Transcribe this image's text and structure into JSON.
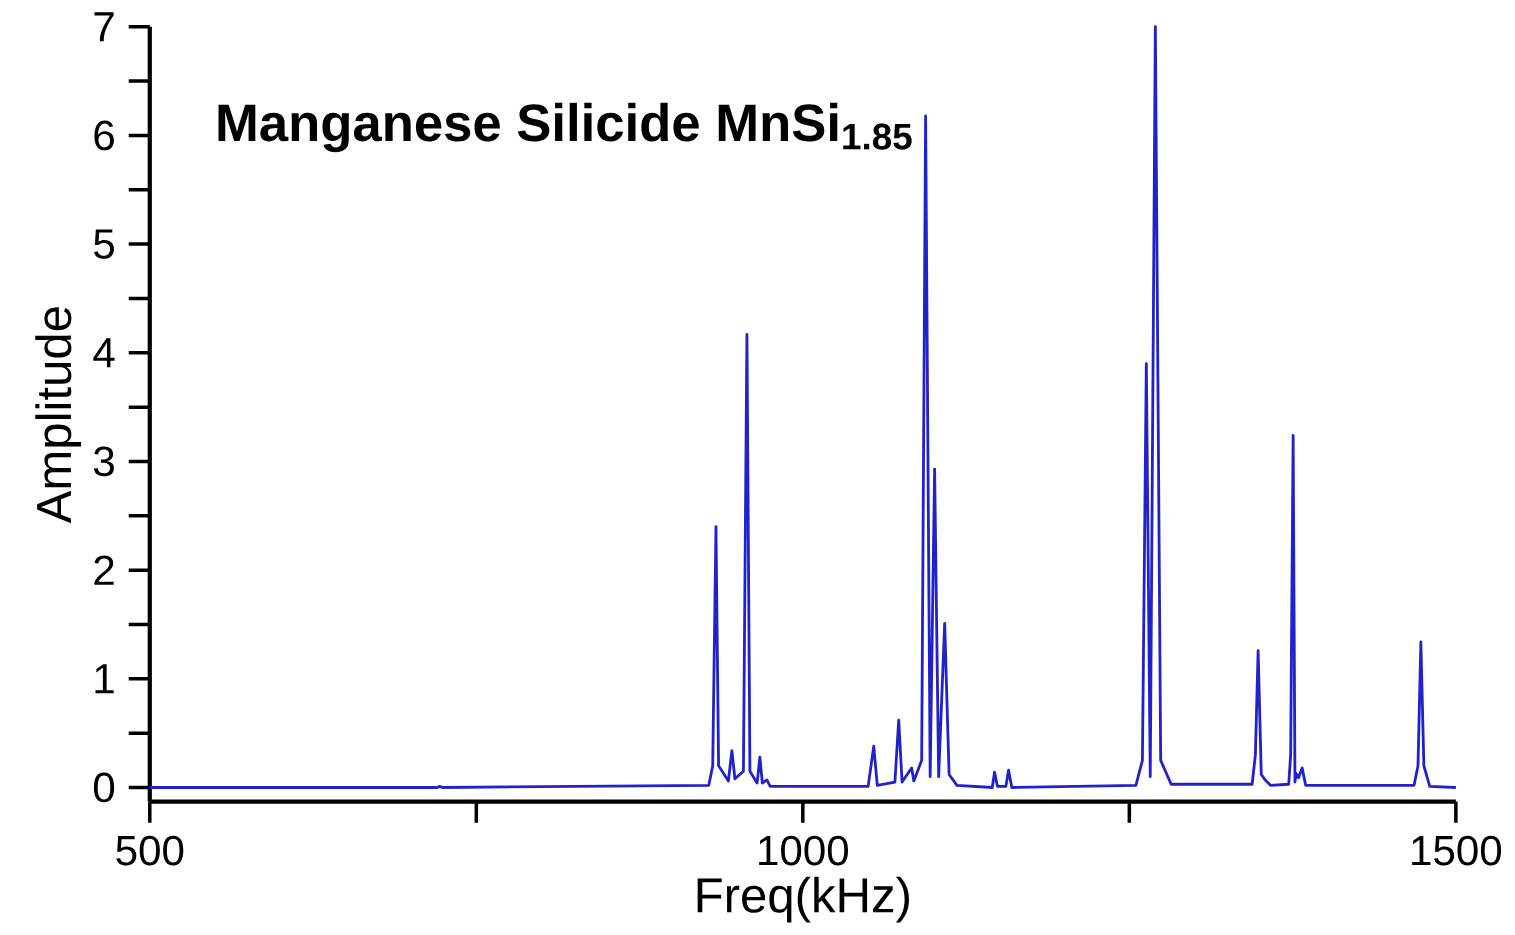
{
  "chart_data": {
    "type": "line",
    "title": "Manganese Silicide MnSi$_{1.85}$",
    "xlabel": "Freq(kHz)",
    "ylabel": "Amplitude",
    "xlim": [
      500,
      1500
    ],
    "ylim": [
      -0.13,
      7.0
    ],
    "xticks": [
      500,
      1000,
      1500
    ],
    "yticks": [
      0,
      1,
      2,
      3,
      4,
      5,
      6,
      7
    ],
    "series": [
      {
        "color": "#2222cc",
        "x": [
          500,
          720,
          722,
          724,
          928,
          931,
          933.5,
          935.5,
          943,
          945.7,
          948,
          954.5,
          957.2,
          959.5,
          965,
          967.1,
          969,
          972.5,
          975,
          1050,
          1054.3,
          1057,
          1070.5,
          1073.4,
          1076,
          1083.3,
          1085,
          1091,
          1094.0,
          1097.5,
          1100.9,
          1104,
          1108.6,
          1112,
          1118,
          1145,
          1146.8,
          1149,
          1155.5,
          1157.5,
          1160,
          1255,
          1260,
          1263.0,
          1266,
          1269.9,
          1274,
          1282,
          1344,
          1346.5,
          1348.6,
          1351,
          1354,
          1358,
          1372,
          1373.5,
          1375.4,
          1376.8,
          1377.7,
          1379.5,
          1382.3,
          1385,
          1468,
          1471,
          1473.2,
          1475.5,
          1480,
          1500
        ],
        "values": [
          0,
          0,
          0.01,
          0,
          0.02,
          0.2,
          2.4,
          0.2,
          0.06,
          0.34,
          0.08,
          0.15,
          4.17,
          0.15,
          0.04,
          0.28,
          0.04,
          0.07,
          0.01,
          0.01,
          0.38,
          0.02,
          0.05,
          0.62,
          0.05,
          0.18,
          0.06,
          0.25,
          6.18,
          0.1,
          2.93,
          0.1,
          1.51,
          0.12,
          0.02,
          0,
          0.14,
          0.01,
          0.01,
          0.16,
          0,
          0.02,
          0.25,
          3.9,
          0.1,
          7.0,
          0.25,
          0.03,
          0.03,
          0.3,
          1.26,
          0.12,
          0.07,
          0.02,
          0.03,
          0.3,
          3.24,
          0.05,
          0.13,
          0.09,
          0.18,
          0.02,
          0.02,
          0.2,
          1.34,
          0.2,
          0.01,
          0
        ]
      }
    ]
  }
}
